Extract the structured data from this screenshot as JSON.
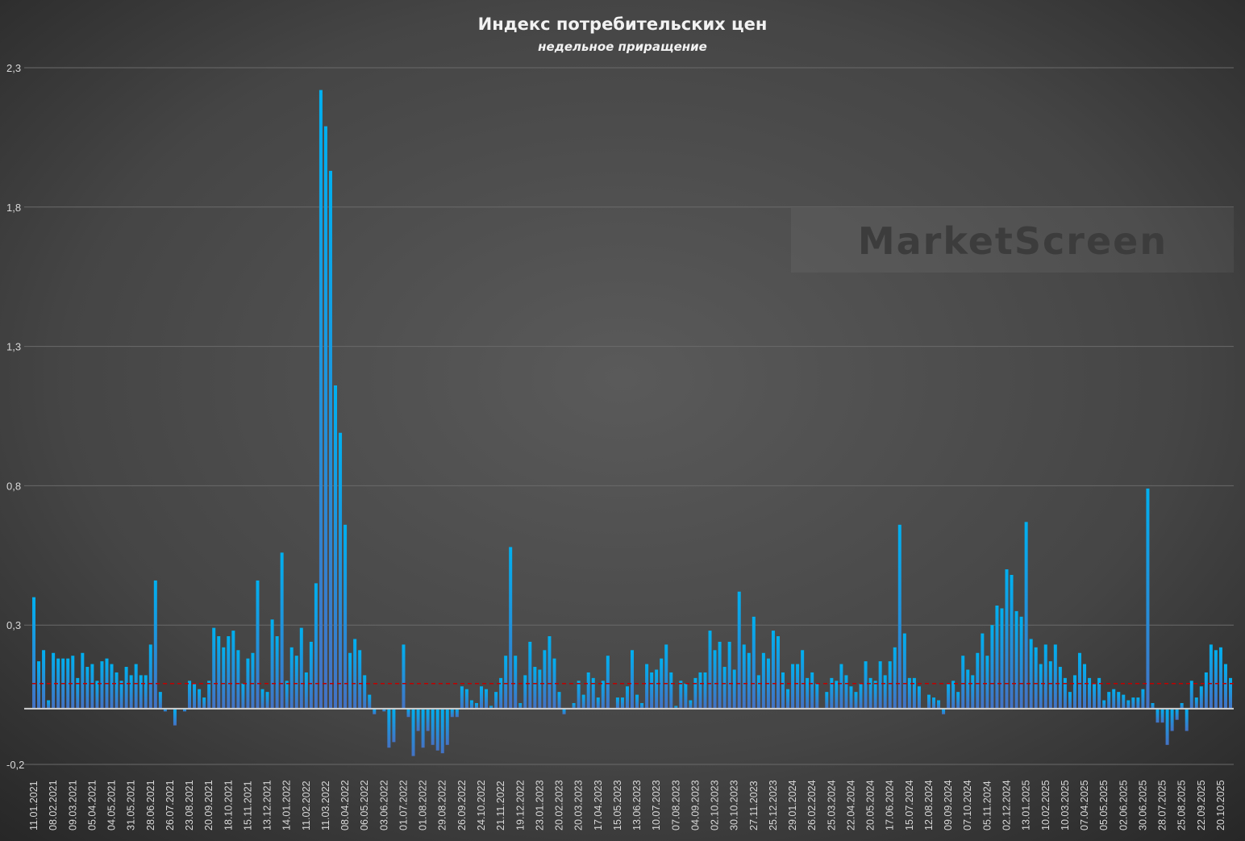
{
  "chart_data": {
    "type": "bar",
    "title": "Индекс потребительских цен",
    "subtitle": "недельное приращение",
    "xlabel": "",
    "ylabel": "",
    "ylim": [
      -0.2,
      2.3
    ],
    "yticks": [
      -0.2,
      0.3,
      0.8,
      1.3,
      1.8,
      2.3
    ],
    "ytick_labels": [
      "-0,2",
      "0,3",
      "0,8",
      "1,3",
      "1,8",
      "2,3"
    ],
    "grid": true,
    "legend": "none",
    "reference_line": {
      "value": 0.09,
      "style": "dashed",
      "color": "#c00000"
    },
    "watermark": "MarketScreen",
    "bar_color_top": "#00b0f0",
    "bar_color_bottom": "#4472c4",
    "x_label_every": 4,
    "x_tick_labels": [
      "11.01.2021",
      "08.02.2021",
      "09.03.2021",
      "05.04.2021",
      "04.05.2021",
      "31.05.2021",
      "28.06.2021",
      "26.07.2021",
      "23.08.2021",
      "20.09.2021",
      "18.10.2021",
      "15.11.2021",
      "13.12.2021",
      "14.01.2022",
      "11.02.2022",
      "11.03.2022",
      "08.04.2022",
      "06.05.2022",
      "03.06.2022",
      "01.07.2022",
      "01.08.2022",
      "29.08.2022",
      "26.09.2022",
      "24.10.2022",
      "21.11.2022",
      "19.12.2022",
      "23.01.2023",
      "20.02.2023",
      "20.03.2023",
      "17.04.2023",
      "15.05.2023",
      "13.06.2023",
      "10.07.2023",
      "07.08.2023",
      "04.09.2023",
      "02.10.2023",
      "30.10.2023",
      "27.11.2023",
      "25.12.2023",
      "29.01.2024",
      "26.02.2024",
      "25.03.2024",
      "22.04.2024",
      "20.05.2024",
      "17.06.2024",
      "15.07.2024",
      "12.08.2024",
      "09.09.2024",
      "07.10.2024",
      "05.11.2024",
      "02.12.2024",
      "13.01.2025",
      "10.02.2025",
      "10.03.2025",
      "07.04.2025",
      "05.05.2025",
      "02.06.2025",
      "30.06.2025",
      "28.07.2025",
      "25.08.2025",
      "22.09.2025",
      "20.10.2025"
    ],
    "values": [
      0.4,
      0.17,
      0.21,
      0.03,
      0.2,
      0.18,
      0.18,
      0.18,
      0.19,
      0.11,
      0.2,
      0.15,
      0.16,
      0.1,
      0.17,
      0.18,
      0.16,
      0.13,
      0.1,
      0.15,
      0.12,
      0.16,
      0.12,
      0.12,
      0.23,
      0.46,
      0.06,
      -0.01,
      0,
      -0.06,
      0,
      -0.01,
      0.1,
      0.09,
      0.07,
      0.04,
      0.1,
      0.29,
      0.26,
      0.22,
      0.26,
      0.28,
      0.21,
      0.09,
      0.18,
      0.2,
      0.46,
      0.07,
      0.06,
      0.32,
      0.26,
      0.56,
      0.1,
      0.22,
      0.19,
      0.29,
      0.13,
      0.24,
      0.45,
      2.22,
      2.09,
      1.93,
      1.16,
      0.99,
      0.66,
      0.2,
      0.25,
      0.21,
      0.12,
      0.05,
      -0.02,
      0,
      -0.01,
      -0.14,
      -0.12,
      0,
      0.23,
      -0.03,
      -0.17,
      -0.08,
      -0.14,
      -0.08,
      -0.13,
      -0.15,
      -0.16,
      -0.13,
      -0.03,
      -0.03,
      0.08,
      0.07,
      0.03,
      0.02,
      0.08,
      0.07,
      0.01,
      0.06,
      0.11,
      0.19,
      0.58,
      0.19,
      0.02,
      0.12,
      0.24,
      0.15,
      0.14,
      0.21,
      0.26,
      0.18,
      0.06,
      -0.02,
      0,
      0.02,
      0.1,
      0.05,
      0.13,
      0.11,
      0.04,
      0.1,
      0.19,
      0,
      0.04,
      0.04,
      0.08,
      0.21,
      0.05,
      0.02,
      0.16,
      0.13,
      0.14,
      0.18,
      0.23,
      0.13,
      0.01,
      0.1,
      0.09,
      0.03,
      0.11,
      0.13,
      0.13,
      0.28,
      0.21,
      0.24,
      0.15,
      0.24,
      0.14,
      0.42,
      0.23,
      0.2,
      0.33,
      0.12,
      0.2,
      0.18,
      0.28,
      0.26,
      0.13,
      0.07,
      0.16,
      0.16,
      0.21,
      0.11,
      0.13,
      0.09,
      0,
      0.06,
      0.11,
      0.1,
      0.16,
      0.12,
      0.08,
      0.06,
      0.09,
      0.17,
      0.11,
      0.1,
      0.17,
      0.12,
      0.17,
      0.22,
      0.66,
      0.27,
      0.11,
      0.11,
      0.08,
      0,
      0.05,
      0.04,
      0.03,
      -0.02,
      0.09,
      0.1,
      0.06,
      0.19,
      0.14,
      0.12,
      0.2,
      0.27,
      0.19,
      0.3,
      0.37,
      0.36,
      0.5,
      0.48,
      0.35,
      0.33,
      0.67,
      0.25,
      0.22,
      0.16,
      0.23,
      0.17,
      0.23,
      0.15,
      0.11,
      0.06,
      0.12,
      0.2,
      0.16,
      0.11,
      0.09,
      0.11,
      0.03,
      0.06,
      0.07,
      0.06,
      0.05,
      0.03,
      0.04,
      0.04,
      0.07,
      0.79,
      0.02,
      -0.05,
      -0.05,
      -0.13,
      -0.08,
      -0.04,
      0.02,
      -0.08,
      0.1,
      0.04,
      0.08,
      0.13,
      0.23,
      0.21,
      0.22,
      0.16,
      0.11
    ]
  }
}
